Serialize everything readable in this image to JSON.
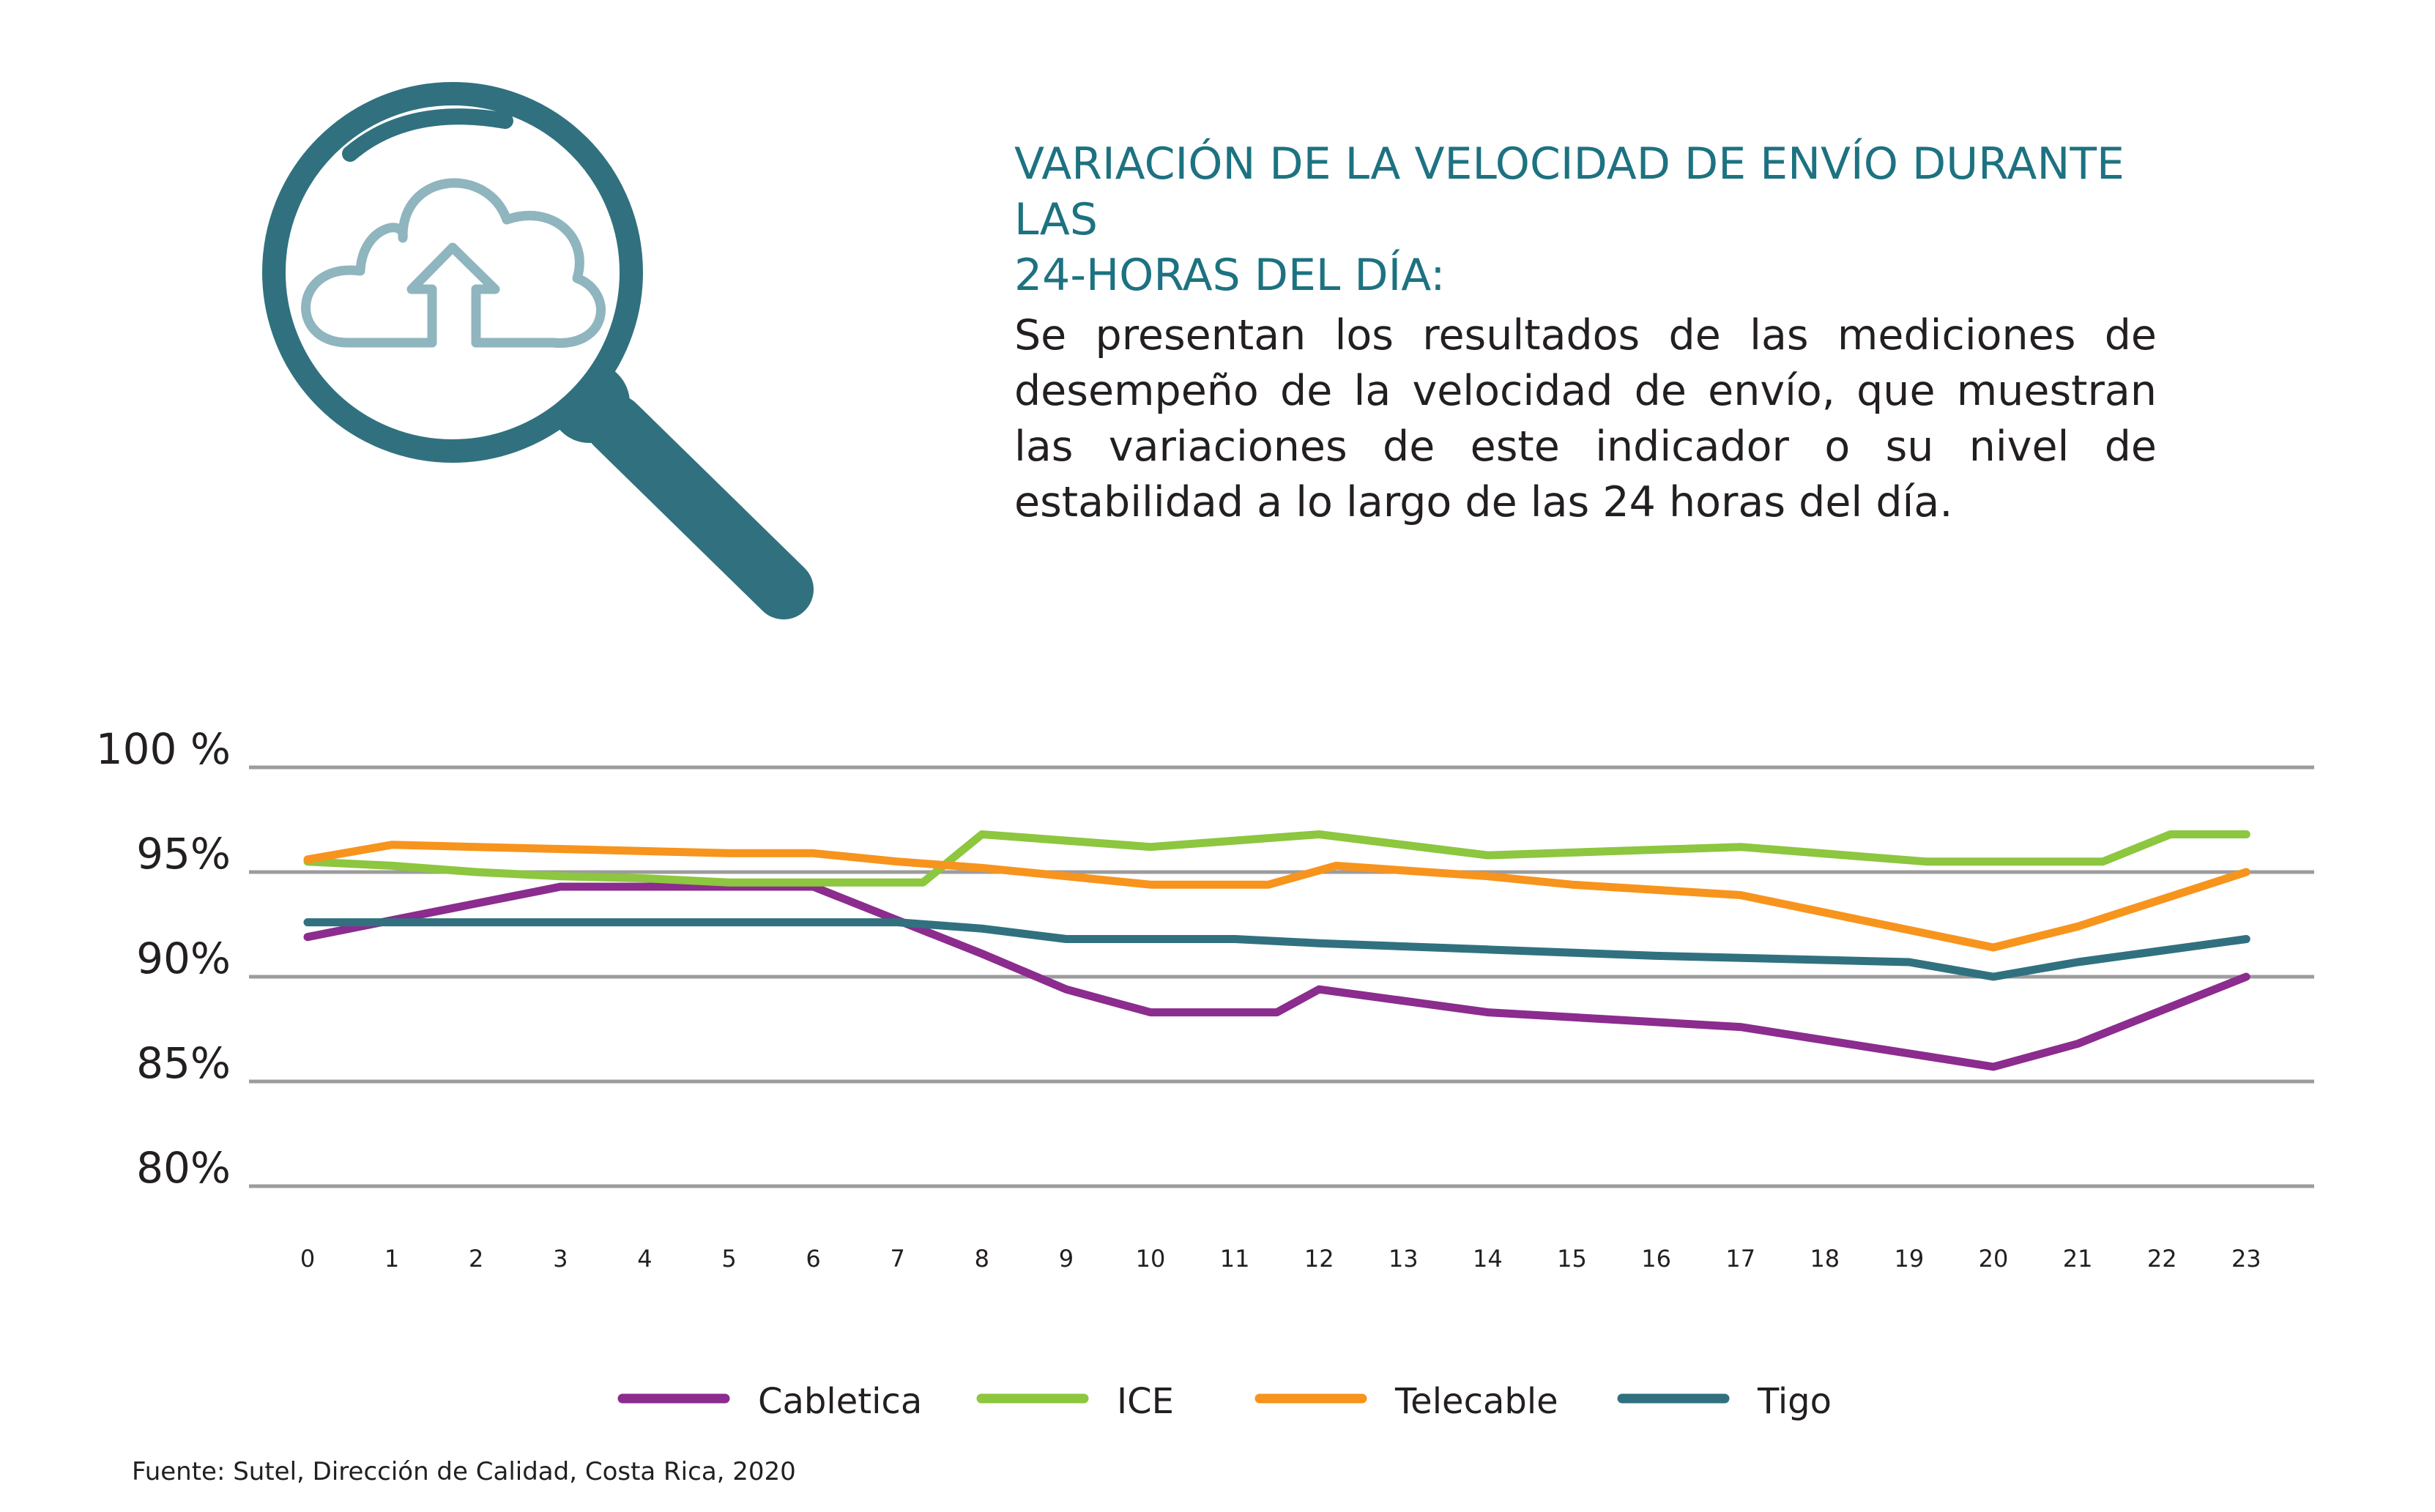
{
  "title": {
    "line1": "VARIACIÓN DE LA VELOCIDAD DE ENVÍO DURANTE LAS",
    "line2": "24-HORAS DEL DÍA:"
  },
  "description": "Se presentan los resultados de las mediciones de desempeño de la velocidad de envío, que muestran las variaciones de este indicador o su nivel de estabilidad a lo largo de las 24 horas del día.",
  "source": "Fuente: Sutel, Dirección de Calidad, Costa Rica, 2020",
  "icons": {
    "magnifier": "magnifying-glass-icon",
    "cloud_upload": "cloud-upload-icon"
  },
  "colors": {
    "teal": "#31717f",
    "heading": "#1d7281",
    "light_teal": "#8fb5bf",
    "grid": "#9c9c9c",
    "text": "#231f20"
  },
  "chart_data": {
    "type": "line",
    "title": "",
    "xlabel": "",
    "ylabel": "",
    "ylim": [
      80,
      100
    ],
    "grid": true,
    "legend_position": "bottom-center",
    "yticks": [
      {
        "value": 100,
        "label": "100 %"
      },
      {
        "value": 95,
        "label": "95%"
      },
      {
        "value": 90,
        "label": "90%"
      },
      {
        "value": 85,
        "label": "85%"
      },
      {
        "value": 80,
        "label": "80%"
      }
    ],
    "x": [
      "0",
      "1",
      "2",
      "3",
      "4",
      "5",
      "6",
      "7",
      "8",
      "9",
      "10",
      "11",
      "12",
      "13",
      "14",
      "15",
      "16",
      "17",
      "18",
      "19",
      "20",
      "21",
      "22",
      "23"
    ],
    "series": [
      {
        "name": "Cabletica",
        "color": "#8b2c8e",
        "points": [
          [
            0,
            91.9
          ],
          [
            1,
            92.7
          ],
          [
            2,
            93.5
          ],
          [
            3,
            94.3
          ],
          [
            4,
            94.3
          ],
          [
            5,
            94.3
          ],
          [
            6,
            94.3
          ],
          [
            7,
            92.7
          ],
          [
            8,
            91.1
          ],
          [
            9,
            89.4
          ],
          [
            10,
            88.3
          ],
          [
            11,
            88.3
          ],
          [
            11.5,
            88.3
          ],
          [
            12,
            89.4
          ],
          [
            14,
            88.3
          ],
          [
            17,
            87.6
          ],
          [
            20,
            85.7
          ],
          [
            21,
            86.8
          ],
          [
            23,
            90.0
          ]
        ]
      },
      {
        "name": "ICE",
        "color": "#8dc63f",
        "points": [
          [
            0,
            95.5
          ],
          [
            1,
            95.3
          ],
          [
            2,
            95.0
          ],
          [
            3,
            94.8
          ],
          [
            4,
            94.7
          ],
          [
            5,
            94.5
          ],
          [
            6,
            94.5
          ],
          [
            7.3,
            94.5
          ],
          [
            8,
            96.8
          ],
          [
            9,
            96.5
          ],
          [
            10,
            96.2
          ],
          [
            12,
            96.8
          ],
          [
            14,
            95.8
          ],
          [
            17,
            96.2
          ],
          [
            19.2,
            95.5
          ],
          [
            21.3,
            95.5
          ],
          [
            22.1,
            96.8
          ],
          [
            23,
            96.8
          ]
        ]
      },
      {
        "name": "Telecable",
        "color": "#f7941d",
        "points": [
          [
            0,
            95.6
          ],
          [
            1,
            96.3
          ],
          [
            2,
            96.2
          ],
          [
            3,
            96.1
          ],
          [
            4,
            96.0
          ],
          [
            5,
            95.9
          ],
          [
            6,
            95.9
          ],
          [
            7,
            95.5
          ],
          [
            8,
            95.2
          ],
          [
            9,
            94.8
          ],
          [
            10,
            94.4
          ],
          [
            11.4,
            94.4
          ],
          [
            12.2,
            95.3
          ],
          [
            14,
            94.8
          ],
          [
            15,
            94.4
          ],
          [
            17,
            93.9
          ],
          [
            20,
            91.4
          ],
          [
            21,
            92.4
          ],
          [
            23,
            95.0
          ]
        ]
      },
      {
        "name": "Tigo",
        "color": "#31717f",
        "points": [
          [
            0,
            92.6
          ],
          [
            1,
            92.6
          ],
          [
            2,
            92.6
          ],
          [
            3,
            92.6
          ],
          [
            4,
            92.6
          ],
          [
            5,
            92.6
          ],
          [
            6,
            92.6
          ],
          [
            7,
            92.6
          ],
          [
            8,
            92.3
          ],
          [
            9,
            91.8
          ],
          [
            10,
            91.8
          ],
          [
            11,
            91.8
          ],
          [
            12,
            91.6
          ],
          [
            14,
            91.3
          ],
          [
            16,
            91.0
          ],
          [
            18,
            90.8
          ],
          [
            19,
            90.7
          ],
          [
            20,
            90.0
          ],
          [
            21,
            90.7
          ],
          [
            23,
            91.8
          ]
        ]
      }
    ]
  }
}
